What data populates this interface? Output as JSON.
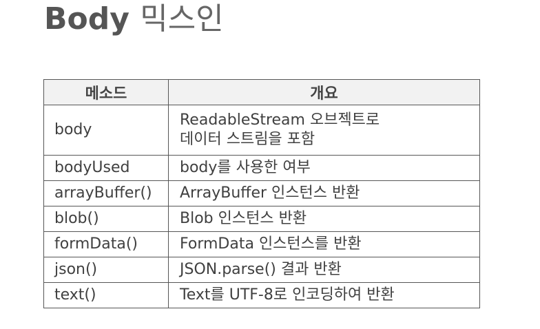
{
  "title": {
    "bold": "Body",
    "light": "믹스인"
  },
  "table": {
    "headers": [
      "메소드",
      "개요"
    ],
    "rows": [
      {
        "method": "body",
        "summary_lines": [
          "ReadableStream 오브젝트로",
          "데이터 스트림을 포함"
        ]
      },
      {
        "method": "bodyUsed",
        "summary_lines": [
          "body를 사용한 여부"
        ]
      },
      {
        "method": "arrayBuffer()",
        "summary_lines": [
          "ArrayBuffer 인스턴스 반환"
        ]
      },
      {
        "method": "blob()",
        "summary_lines": [
          "Blob 인스턴스 반환"
        ]
      },
      {
        "method": "formData()",
        "summary_lines": [
          "FormData 인스턴스를 반환"
        ]
      },
      {
        "method": "json()",
        "summary_lines": [
          "JSON.parse() 결과 반환"
        ]
      },
      {
        "method": "text()",
        "summary_lines": [
          "Text를 UTF-8로 인코딩하여 반환"
        ]
      }
    ]
  }
}
